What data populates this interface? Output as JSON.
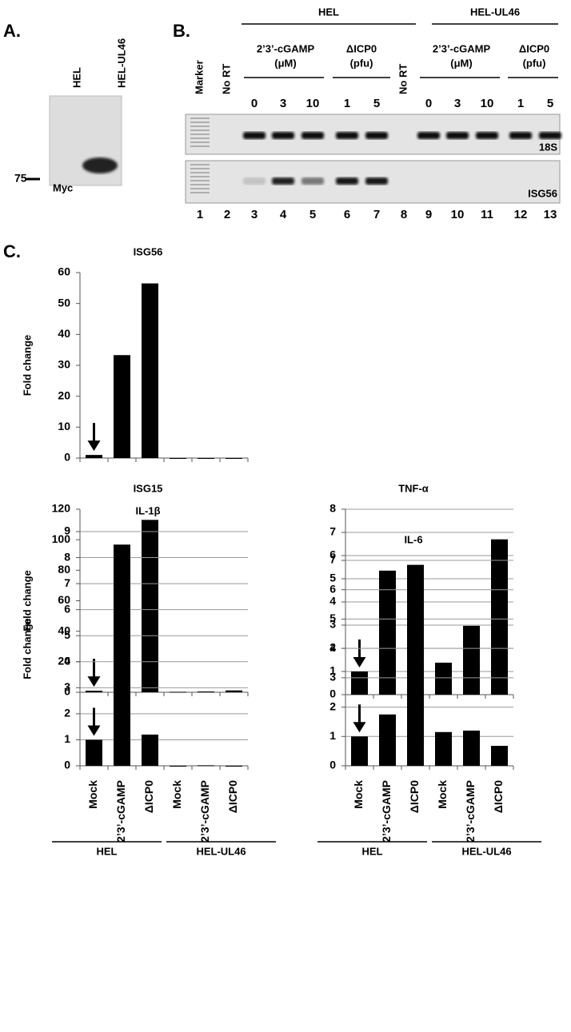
{
  "panel_a": {
    "label": "A.",
    "lanes": [
      "HEL",
      "HEL-UL46"
    ],
    "marker": "75",
    "band": "Myc"
  },
  "panel_b": {
    "label": "B.",
    "groups": [
      "HEL",
      "HEL-UL46"
    ],
    "lane_headers": [
      "Marker",
      "No RT",
      "No RT"
    ],
    "treatments": [
      [
        "2’3’-cGAMP",
        "(μM)"
      ],
      [
        "ΔICP0",
        "(pfu)"
      ],
      [
        "2’3’-cGAMP",
        "(μM)"
      ],
      [
        "ΔICP0",
        "(pfu)"
      ]
    ],
    "doses": [
      "0",
      "3",
      "10",
      "1",
      "5",
      "0",
      "3",
      "10",
      "1",
      "5"
    ],
    "gel_labels": [
      "18S",
      "ISG56"
    ],
    "lanes": [
      1,
      2,
      3,
      4,
      5,
      6,
      7,
      8,
      9,
      10,
      11,
      12,
      13
    ]
  },
  "panel_c_label": "C.",
  "chart_data": [
    {
      "type": "bar",
      "title": "ISG56",
      "ylabel": "Fold change",
      "values": [
        1,
        33.3,
        56.5,
        0,
        0,
        0
      ],
      "color": "#000000",
      "ylim": [
        0,
        60
      ],
      "yticks": [
        0,
        10,
        20,
        30,
        40,
        50,
        60
      ],
      "grid": false
    },
    {
      "type": "bar",
      "title": "ISG15",
      "ylabel": "Fold change",
      "values": [
        1,
        50,
        113,
        0.3,
        0.5,
        1.2
      ],
      "color": "#000000",
      "ylim": [
        0,
        120
      ],
      "yticks": [
        0,
        20,
        40,
        60,
        80,
        100,
        120
      ],
      "grid": false
    },
    {
      "type": "bar",
      "title": "TNF-α",
      "values": [
        1,
        5.35,
        5.6,
        1.38,
        2.97,
        6.7
      ],
      "color": "#000000",
      "ylim": [
        0,
        8
      ],
      "yticks": [
        0,
        1,
        2,
        3,
        4,
        5,
        6,
        7,
        8
      ],
      "grid": true
    },
    {
      "type": "bar",
      "title": "IL-1β",
      "ylabel": "Fold change",
      "categories": [
        "Mock",
        "2’3’-cGAMP",
        "ΔICP0",
        "Mock",
        "2’3’-cGAMP",
        "ΔICP0"
      ],
      "groups": [
        "HEL",
        "HEL-UL46"
      ],
      "values": [
        1,
        8.5,
        1.2,
        0,
        0.02,
        0
      ],
      "color": "#000000",
      "ylim": [
        0,
        9
      ],
      "yticks": [
        0,
        1,
        2,
        3,
        4,
        5,
        6,
        7,
        8,
        9
      ],
      "grid": true
    },
    {
      "type": "bar",
      "title": "IL-6",
      "categories": [
        "Mock",
        "2’3’-cGAMP",
        "ΔICP0",
        "Mock",
        "2’3’-cGAMP",
        "ΔICP0"
      ],
      "groups": [
        "HEL",
        "HEL-UL46"
      ],
      "values": [
        1,
        1.75,
        6.15,
        1.15,
        1.2,
        0.68
      ],
      "color": "#000000",
      "ylim": [
        0,
        7
      ],
      "yticks": [
        0,
        1,
        2,
        3,
        4,
        5,
        6,
        7
      ],
      "grid": true
    }
  ]
}
